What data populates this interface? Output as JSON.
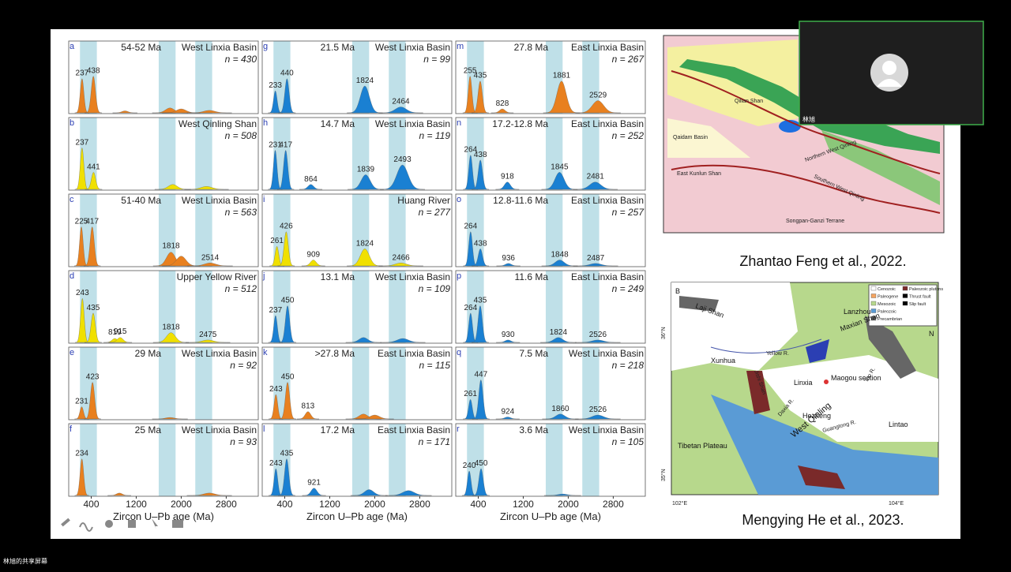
{
  "slide": {
    "xlim": [
      0,
      3370
    ],
    "xticks": [
      400,
      1200,
      2000,
      2800
    ],
    "x_title": "Zircon U–Pb age (Ma)",
    "bands": [
      [
        200,
        500
      ],
      [
        1600,
        1900
      ],
      [
        2250,
        2550
      ]
    ],
    "panels": [
      {
        "letter": "a",
        "age": "54-52 Ma",
        "location": "West Linxia Basin",
        "n": "n = 430",
        "color": "#e8801f",
        "peak_labels": [
          237,
          438
        ],
        "curve": [
          {
            "age": 237,
            "h": 0.7
          },
          {
            "age": 438,
            "h": 0.75
          },
          {
            "age": 1000,
            "h": 0.04
          },
          {
            "age": 1800,
            "h": 0.1
          },
          {
            "age": 2000,
            "h": 0.08
          },
          {
            "age": 2500,
            "h": 0.05
          }
        ]
      },
      {
        "letter": "b",
        "age": null,
        "location": "West Qinling Shan",
        "n": "n = 508",
        "color": "#f0e000",
        "peak_labels": [
          237,
          441
        ],
        "curve": [
          {
            "age": 237,
            "h": 0.85
          },
          {
            "age": 441,
            "h": 0.35
          },
          {
            "age": 1850,
            "h": 0.1
          },
          {
            "age": 2450,
            "h": 0.06
          }
        ]
      },
      {
        "letter": "c",
        "age": "51-40 Ma",
        "location": "West Linxia Basin",
        "n": "n = 563",
        "color": "#e8801f",
        "peak_labels": [
          225,
          417,
          1818,
          2514
        ],
        "curve": [
          {
            "age": 225,
            "h": 0.8
          },
          {
            "age": 417,
            "h": 0.8
          },
          {
            "age": 1818,
            "h": 0.28
          },
          {
            "age": 2000,
            "h": 0.2
          },
          {
            "age": 2514,
            "h": 0.06
          }
        ]
      },
      {
        "letter": "d",
        "age": null,
        "location": "Upper Yellow River",
        "n": "n = 512",
        "color": "#f0e000",
        "peak_labels": [
          243,
          435,
          819,
          915,
          1818,
          2475
        ],
        "curve": [
          {
            "age": 243,
            "h": 0.9
          },
          {
            "age": 435,
            "h": 0.6
          },
          {
            "age": 819,
            "h": 0.08
          },
          {
            "age": 915,
            "h": 0.1
          },
          {
            "age": 1818,
            "h": 0.2
          },
          {
            "age": 2475,
            "h": 0.05
          }
        ]
      },
      {
        "letter": "e",
        "age": "29 Ma",
        "location": "West Linxia Basin",
        "n": "n = 92",
        "color": "#e8801f",
        "peak_labels": [
          231,
          423
        ],
        "curve": [
          {
            "age": 231,
            "h": 0.25
          },
          {
            "age": 423,
            "h": 0.75
          },
          {
            "age": 1800,
            "h": 0.03
          }
        ]
      },
      {
        "letter": "f",
        "age": "25 Ma",
        "location": "West Linxia Basin",
        "n": "n = 93",
        "color": "#e8801f",
        "peak_labels": [
          234
        ],
        "curve": [
          {
            "age": 234,
            "h": 0.75
          },
          {
            "age": 900,
            "h": 0.05
          },
          {
            "age": 2500,
            "h": 0.05
          }
        ]
      },
      {
        "letter": "g",
        "age": "21.5 Ma",
        "location": "West Linxia Basin",
        "n": "n = 99",
        "color": "#1a80d2",
        "peak_labels": [
          233,
          440,
          1824,
          2464
        ],
        "curve": [
          {
            "age": 233,
            "h": 0.45
          },
          {
            "age": 440,
            "h": 0.7
          },
          {
            "age": 1824,
            "h": 0.55
          },
          {
            "age": 2464,
            "h": 0.12
          }
        ]
      },
      {
        "letter": "h",
        "age": "14.7 Ma",
        "location": "West Linxia Basin",
        "n": "n = 119",
        "color": "#1a80d2",
        "peak_labels": [
          231,
          417,
          864,
          1839,
          2493
        ],
        "curve": [
          {
            "age": 231,
            "h": 0.8
          },
          {
            "age": 417,
            "h": 0.8
          },
          {
            "age": 864,
            "h": 0.1
          },
          {
            "age": 1839,
            "h": 0.3
          },
          {
            "age": 2493,
            "h": 0.5
          }
        ]
      },
      {
        "letter": "i",
        "age": null,
        "location": "Huang River",
        "n": "n = 277",
        "color": "#f0e000",
        "peak_labels": [
          261,
          426,
          909,
          1824,
          2466
        ],
        "curve": [
          {
            "age": 261,
            "h": 0.4
          },
          {
            "age": 426,
            "h": 0.7
          },
          {
            "age": 909,
            "h": 0.12
          },
          {
            "age": 1824,
            "h": 0.35
          },
          {
            "age": 2466,
            "h": 0.06
          }
        ]
      },
      {
        "letter": "j",
        "age": "13.1 Ma",
        "location": "West Linxia Basin",
        "n": "n = 109",
        "color": "#1a80d2",
        "peak_labels": [
          237,
          450
        ],
        "curve": [
          {
            "age": 237,
            "h": 0.55
          },
          {
            "age": 450,
            "h": 0.75
          },
          {
            "age": 1800,
            "h": 0.1
          },
          {
            "age": 2500,
            "h": 0.08
          }
        ]
      },
      {
        "letter": "k",
        "age": ">27.8 Ma",
        "location": "East Linxia Basin",
        "n": "n = 115",
        "color": "#e8801f",
        "peak_labels": [
          243,
          450,
          813
        ],
        "curve": [
          {
            "age": 243,
            "h": 0.5
          },
          {
            "age": 450,
            "h": 0.75
          },
          {
            "age": 813,
            "h": 0.15
          },
          {
            "age": 1800,
            "h": 0.1
          },
          {
            "age": 2000,
            "h": 0.08
          }
        ]
      },
      {
        "letter": "l",
        "age": "17.2 Ma",
        "location": "East Linxia Basin",
        "n": "n = 171",
        "color": "#1a80d2",
        "peak_labels": [
          243,
          435,
          921
        ],
        "curve": [
          {
            "age": 243,
            "h": 0.55
          },
          {
            "age": 435,
            "h": 0.75
          },
          {
            "age": 921,
            "h": 0.15
          },
          {
            "age": 1900,
            "h": 0.12
          },
          {
            "age": 2600,
            "h": 0.1
          }
        ]
      },
      {
        "letter": "m",
        "age": "27.8 Ma",
        "location": "East Linxia Basin",
        "n": "n = 267",
        "color": "#e8801f",
        "peak_labels": [
          255,
          435,
          828,
          1881,
          2529
        ],
        "curve": [
          {
            "age": 255,
            "h": 0.75
          },
          {
            "age": 435,
            "h": 0.65
          },
          {
            "age": 828,
            "h": 0.08
          },
          {
            "age": 1881,
            "h": 0.65
          },
          {
            "age": 2529,
            "h": 0.25
          }
        ]
      },
      {
        "letter": "n",
        "age": "17.2-12.8 Ma",
        "location": "East Linxia Basin",
        "n": "n = 252",
        "color": "#1a80d2",
        "peak_labels": [
          264,
          438,
          918,
          1845,
          2481
        ],
        "curve": [
          {
            "age": 264,
            "h": 0.7
          },
          {
            "age": 438,
            "h": 0.6
          },
          {
            "age": 918,
            "h": 0.15
          },
          {
            "age": 1845,
            "h": 0.35
          },
          {
            "age": 2481,
            "h": 0.15
          }
        ]
      },
      {
        "letter": "o",
        "age": "12.8-11.6 Ma",
        "location": "East Linxia Basin",
        "n": "n = 257",
        "color": "#1a80d2",
        "peak_labels": [
          264,
          438,
          936,
          1848,
          2487
        ],
        "curve": [
          {
            "age": 264,
            "h": 0.7
          },
          {
            "age": 438,
            "h": 0.35
          },
          {
            "age": 936,
            "h": 0.05
          },
          {
            "age": 1848,
            "h": 0.12
          },
          {
            "age": 2487,
            "h": 0.05
          }
        ]
      },
      {
        "letter": "p",
        "age": "11.6 Ma",
        "location": "East Linxia Basin",
        "n": "n = 249",
        "color": "#1a80d2",
        "peak_labels": [
          264,
          435,
          930,
          1824,
          2526
        ],
        "curve": [
          {
            "age": 264,
            "h": 0.6
          },
          {
            "age": 435,
            "h": 0.75
          },
          {
            "age": 930,
            "h": 0.05
          },
          {
            "age": 1824,
            "h": 0.1
          },
          {
            "age": 2526,
            "h": 0.05
          }
        ]
      },
      {
        "letter": "q",
        "age": "7.5 Ma",
        "location": "West Linxia Basin",
        "n": "n = 218",
        "color": "#1a80d2",
        "peak_labels": [
          261,
          447,
          924,
          1860,
          2526
        ],
        "curve": [
          {
            "age": 261,
            "h": 0.4
          },
          {
            "age": 447,
            "h": 0.8
          },
          {
            "age": 924,
            "h": 0.04
          },
          {
            "age": 1860,
            "h": 0.1
          },
          {
            "age": 2526,
            "h": 0.08
          }
        ]
      },
      {
        "letter": "r",
        "age": "3.6 Ma",
        "location": "West Linxia Basin",
        "n": "n = 105",
        "color": "#1a80d2",
        "peak_labels": [
          240,
          450
        ],
        "curve": [
          {
            "age": 240,
            "h": 0.5
          },
          {
            "age": 450,
            "h": 0.55
          },
          {
            "age": 1900,
            "h": 0.03
          }
        ]
      }
    ],
    "map1": {
      "labels": [
        "Qilian Shan",
        "Qaidam Basin",
        "East Kunlun Shan",
        "Northern West Qinling",
        "Southern West Qinling",
        "Songpan-Ganzi Terrane"
      ],
      "caption": "Zhantao Feng  et al., 2022."
    },
    "map2": {
      "labels": [
        "B",
        "Laji Shan",
        "Maxian Shan",
        "Lanzhou",
        "Yellow R.",
        "Xunhua",
        "Jishi Shan",
        "Linxia",
        "Maogou section",
        "Daxia R.",
        "Tao R.",
        "Hezheng",
        "Guangtong R.",
        "Lintao",
        "West Qinling",
        "Tibetan Plateau",
        "36°N",
        "35°N",
        "102°E",
        "104°E",
        "N"
      ],
      "legend": [
        "Cenozoic",
        "Paleogene",
        "Mesozoic",
        "Paleozoic",
        "Precambrian",
        "Paleozoic plutons",
        "Thrust fault",
        "Slip fault"
      ],
      "caption": "Mengying He  et al., 2023."
    }
  },
  "webcam": {
    "name": "林旭"
  },
  "footer": {
    "share_label": "林旭的共享屏幕"
  }
}
